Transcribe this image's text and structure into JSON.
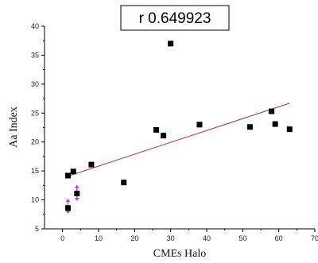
{
  "chart_data": {
    "type": "scatter",
    "title": "",
    "xlabel": "CMEs Halo",
    "ylabel": "Aa Index",
    "xlim": [
      -5,
      70
    ],
    "ylim": [
      5,
      40
    ],
    "x_ticks": [
      0,
      10,
      20,
      30,
      40,
      50,
      60,
      70
    ],
    "x_tick_labels": [
      "0",
      "10",
      "20",
      "30",
      "40",
      "50",
      "60",
      "70"
    ],
    "y_ticks": [
      5,
      10,
      15,
      20,
      25,
      30,
      35,
      40
    ],
    "y_tick_labels": [
      "5",
      "10",
      "15",
      "20",
      "25",
      "30",
      "35",
      "40"
    ],
    "grid": false,
    "annotation": "r 0.649923",
    "series": [
      {
        "marker": "square",
        "color": "#000000",
        "points": [
          {
            "x": 1.5,
            "y": 8.6
          },
          {
            "x": 1.5,
            "y": 14.2
          },
          {
            "x": 3.0,
            "y": 14.9
          },
          {
            "x": 4.0,
            "y": 11.1
          },
          {
            "x": 8.0,
            "y": 16.1
          },
          {
            "x": 17.0,
            "y": 13.0
          },
          {
            "x": 26.0,
            "y": 22.1
          },
          {
            "x": 28.0,
            "y": 21.1
          },
          {
            "x": 30.0,
            "y": 37.0
          },
          {
            "x": 38.0,
            "y": 23.0
          },
          {
            "x": 52.0,
            "y": 22.6
          },
          {
            "x": 58.0,
            "y": 25.3
          },
          {
            "x": 59.0,
            "y": 23.1
          },
          {
            "x": 63.0,
            "y": 22.2
          }
        ]
      }
    ],
    "fit_line": {
      "color": "#b03030",
      "x": [
        1.0,
        63.0
      ],
      "y": [
        14.0,
        26.7
      ]
    },
    "error_markers": {
      "color": "#c040c0",
      "items": [
        {
          "x": 1.5,
          "y_low": 7.6,
          "y_high": 10.2
        },
        {
          "x": 4.0,
          "y_low": 9.8,
          "y_high": 12.6
        }
      ]
    }
  }
}
